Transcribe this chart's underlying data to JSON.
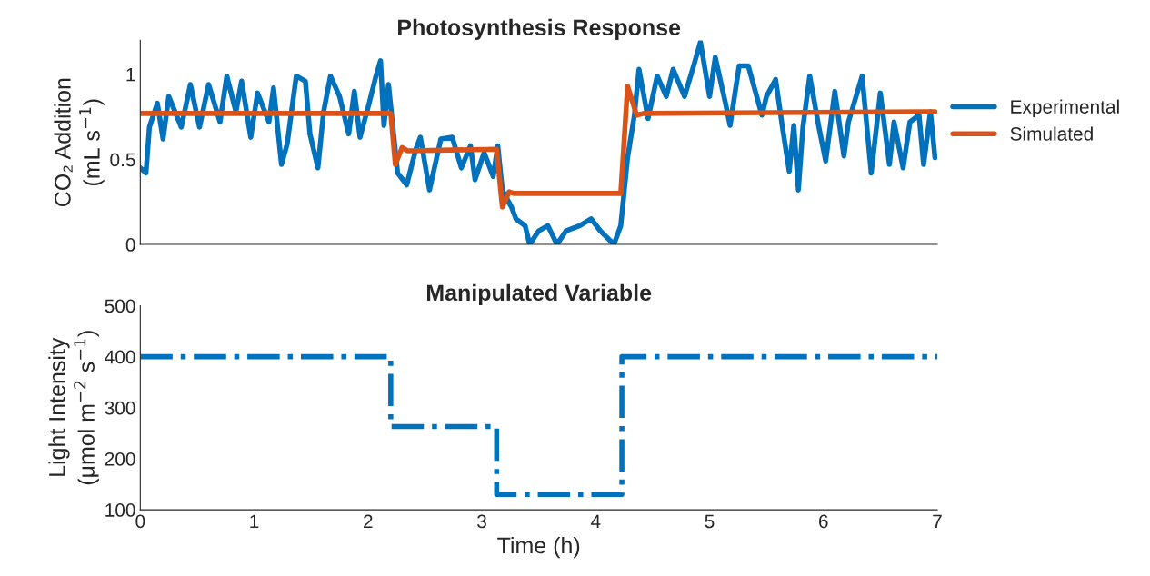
{
  "chart_data": [
    {
      "type": "line",
      "title": "Photosynthesis Response",
      "ylabel": "CO₂ Addition\n(mL s$^{−1}$)",
      "xlim": [
        0,
        7
      ],
      "xticks": [
        0,
        1,
        2,
        3,
        4,
        5,
        6,
        7
      ],
      "ylim": [
        0,
        1.2
      ],
      "yticks": [
        0,
        0.5,
        1
      ],
      "tick_labels": "y",
      "legend": "right",
      "grid": false,
      "line_style": "solid",
      "series": [
        {
          "name": "Experimental",
          "color": "#0072bd",
          "x": [
            0,
            0.05,
            0.08,
            0.15,
            0.2,
            0.25,
            0.36,
            0.44,
            0.52,
            0.6,
            0.7,
            0.76,
            0.84,
            0.89,
            0.97,
            1.03,
            1.13,
            1.17,
            1.24,
            1.29,
            1.37,
            1.45,
            1.49,
            1.56,
            1.61,
            1.67,
            1.75,
            1.83,
            1.88,
            1.93,
            2.01,
            2.07,
            2.11,
            2.14,
            2.18,
            2.26,
            2.34,
            2.42,
            2.46,
            2.54,
            2.64,
            2.74,
            2.82,
            2.9,
            2.94,
            3.02,
            3.1,
            3.14,
            3.18,
            3.26,
            3.3,
            3.38,
            3.42,
            3.5,
            3.58,
            3.66,
            3.74,
            3.86,
            3.96,
            4.04,
            4.16,
            4.22,
            4.28,
            4.34,
            4.38,
            4.46,
            4.54,
            4.62,
            4.68,
            4.78,
            4.86,
            4.92,
            5.0,
            5.05,
            5.14,
            5.18,
            5.26,
            5.34,
            5.46,
            5.5,
            5.58,
            5.64,
            5.7,
            5.74,
            5.78,
            5.82,
            5.88,
            5.96,
            6.02,
            6.1,
            6.18,
            6.22,
            6.34,
            6.42,
            6.5,
            6.58,
            6.62,
            6.7,
            6.76,
            6.84,
            6.88,
            6.94,
            6.98
          ],
          "values": [
            0.45,
            0.42,
            0.69,
            0.83,
            0.62,
            0.87,
            0.69,
            0.94,
            0.69,
            0.94,
            0.72,
            0.99,
            0.78,
            0.96,
            0.63,
            0.89,
            0.72,
            0.92,
            0.47,
            0.59,
            0.99,
            0.96,
            0.65,
            0.45,
            0.78,
            0.99,
            0.87,
            0.65,
            0.9,
            0.63,
            0.83,
            0.99,
            1.08,
            0.7,
            0.94,
            0.42,
            0.35,
            0.56,
            0.63,
            0.32,
            0.62,
            0.63,
            0.45,
            0.58,
            0.38,
            0.54,
            0.4,
            0.58,
            0.32,
            0.22,
            0.15,
            0.11,
            0.0,
            0.08,
            0.11,
            0.0,
            0.08,
            0.11,
            0.15,
            0.08,
            0.0,
            0.11,
            0.51,
            0.76,
            1.03,
            0.74,
            0.99,
            0.87,
            1.03,
            0.87,
            1.05,
            1.19,
            0.87,
            1.1,
            0.83,
            0.7,
            1.05,
            1.05,
            0.76,
            0.87,
            0.97,
            0.69,
            0.43,
            0.7,
            0.32,
            0.69,
            0.99,
            0.69,
            0.49,
            0.9,
            0.52,
            0.72,
            0.99,
            0.42,
            0.89,
            0.47,
            0.72,
            0.45,
            0.72,
            0.76,
            0.47,
            0.78,
            0.51
          ]
        },
        {
          "name": "Simulated",
          "color": "#d95319",
          "x": [
            0,
            2.2,
            2.24,
            2.3,
            2.35,
            3.13,
            3.18,
            3.24,
            3.28,
            4.22,
            4.28,
            4.36,
            4.42,
            6.98
          ],
          "values": [
            0.77,
            0.77,
            0.47,
            0.57,
            0.55,
            0.56,
            0.22,
            0.31,
            0.3,
            0.3,
            0.93,
            0.76,
            0.77,
            0.78
          ]
        }
      ]
    },
    {
      "type": "step",
      "title": "Manipulated Variable",
      "xlabel": "Time (h)",
      "ylabel": "Light Intensity\n(μmol m$^{−2}$ s$^{−1}$)",
      "xlim": [
        0,
        7
      ],
      "xticks": [
        0,
        1,
        2,
        3,
        4,
        5,
        6,
        7
      ],
      "ylim": [
        100,
        500
      ],
      "yticks": [
        100,
        200,
        300,
        400,
        500
      ],
      "grid": false,
      "legend": false,
      "line_style": "dashdot",
      "series": [
        {
          "color": "#0072bd",
          "x": [
            0,
            2.2,
            3.13,
            4.23,
            7
          ],
          "values": [
            400,
            263,
            130,
            400,
            400
          ]
        }
      ]
    }
  ]
}
